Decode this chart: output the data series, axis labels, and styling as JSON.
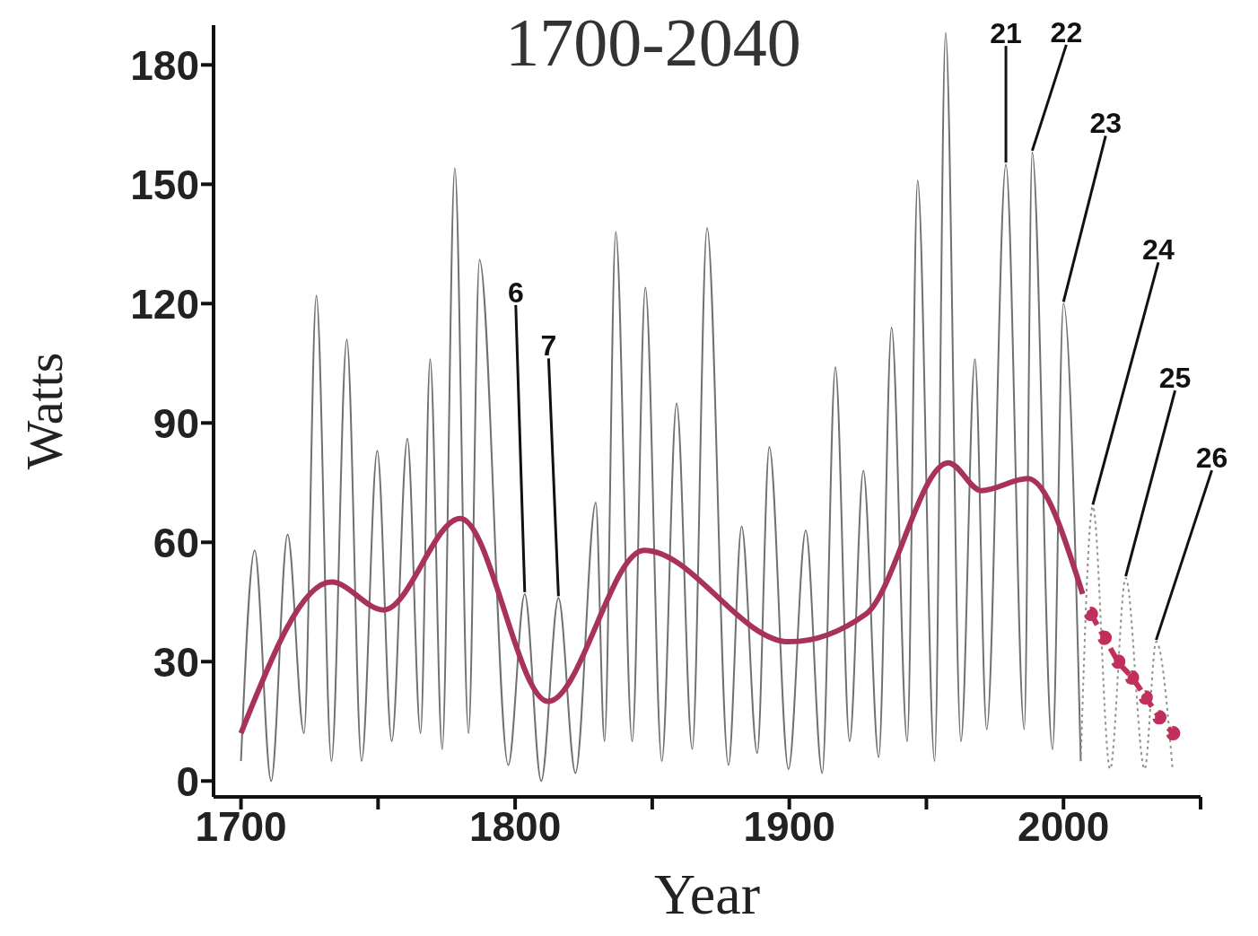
{
  "chart_data": {
    "type": "line",
    "title": "1700-2040",
    "xlabel": "Year",
    "ylabel": "Watts",
    "xlim": [
      1690,
      2050
    ],
    "xticks": [
      1700,
      {
        "value": 1750,
        "label": null
      },
      1800,
      {
        "value": 1850,
        "label": null
      },
      1900,
      {
        "value": 1950,
        "label": null
      },
      2000,
      {
        "value": 2050,
        "label": null
      }
    ],
    "ylim": [
      -4,
      190
    ],
    "yticks": [
      0,
      30,
      60,
      90,
      120,
      150,
      180
    ],
    "series": [
      {
        "color": "#707070",
        "line_style": "solid",
        "marker": "none",
        "x": [
          1700,
          1705,
          1711,
          1717,
          1723,
          1727.5,
          1733,
          1738.6,
          1744,
          1749.7,
          1755,
          1760.7,
          1765.5,
          1769,
          1773.4,
          1778,
          1783,
          1787,
          1797.5,
          1803.5,
          1809.5,
          1815.8,
          1822,
          1829.4,
          1832.6,
          1836.7,
          1842.7,
          1847.5,
          1853.5,
          1858.9,
          1864.6,
          1870,
          1877.8,
          1882.6,
          1888.3,
          1892.7,
          1899.7,
          1906,
          1912,
          1916.8,
          1922,
          1927,
          1932.6,
          1937.3,
          1943,
          1946.8,
          1953,
          1957,
          1962.6,
          1967.7,
          1972,
          1979,
          1985.7,
          1988.6,
          1996,
          2000,
          2006.3
        ],
        "values": [
          5,
          58,
          0,
          62,
          12,
          122,
          5,
          111,
          5,
          83,
          10,
          86,
          12,
          106,
          8,
          154,
          12,
          131,
          4,
          47,
          0,
          46,
          2,
          70,
          10,
          138,
          10,
          124,
          5,
          95,
          8,
          139,
          4,
          64,
          7,
          84,
          3,
          63,
          2,
          104,
          10,
          78,
          6,
          114,
          10,
          151,
          5,
          188,
          10,
          106,
          13,
          155,
          13,
          158,
          8,
          120,
          5
        ]
      },
      {
        "color": "#909090",
        "line_style": "dotted",
        "marker": "none",
        "x": [
          2006.3,
          2010.7,
          2017,
          2022.7,
          2029.6,
          2033.8,
          2039.8
        ],
        "values": [
          5,
          69,
          3,
          51,
          3,
          35,
          3
        ]
      },
      {
        "color": "#a8325a",
        "line_style": "solid",
        "marker": "none",
        "x": [
          1700,
          1733,
          1752,
          1780,
          1812,
          1847,
          1900,
          1928,
          1958,
          1970,
          1987,
          2007
        ],
        "values": [
          12,
          50,
          43,
          66,
          20,
          58,
          35,
          42,
          80,
          73,
          76,
          47
        ]
      },
      {
        "color": "#c0305a",
        "line_style": "dashed",
        "marker": "circle",
        "x": [
          2010,
          2015,
          2020,
          2025,
          2030,
          2035,
          2040
        ],
        "values": [
          42,
          36,
          30,
          26,
          21,
          16,
          12
        ]
      }
    ],
    "annotations": [
      {
        "text": "6",
        "x": 1803.5,
        "y": 47
      },
      {
        "text": "7",
        "x": 1815.8,
        "y": 46
      },
      {
        "text": "21",
        "x": 1979,
        "y": 155
      },
      {
        "text": "22",
        "x": 1988.6,
        "y": 158
      },
      {
        "text": "23",
        "x": 2000,
        "y": 120
      },
      {
        "text": "24",
        "x": 2010.7,
        "y": 69
      },
      {
        "text": "25",
        "x": 2022.7,
        "y": 51
      },
      {
        "text": "26",
        "x": 2033.8,
        "y": 35
      }
    ]
  }
}
